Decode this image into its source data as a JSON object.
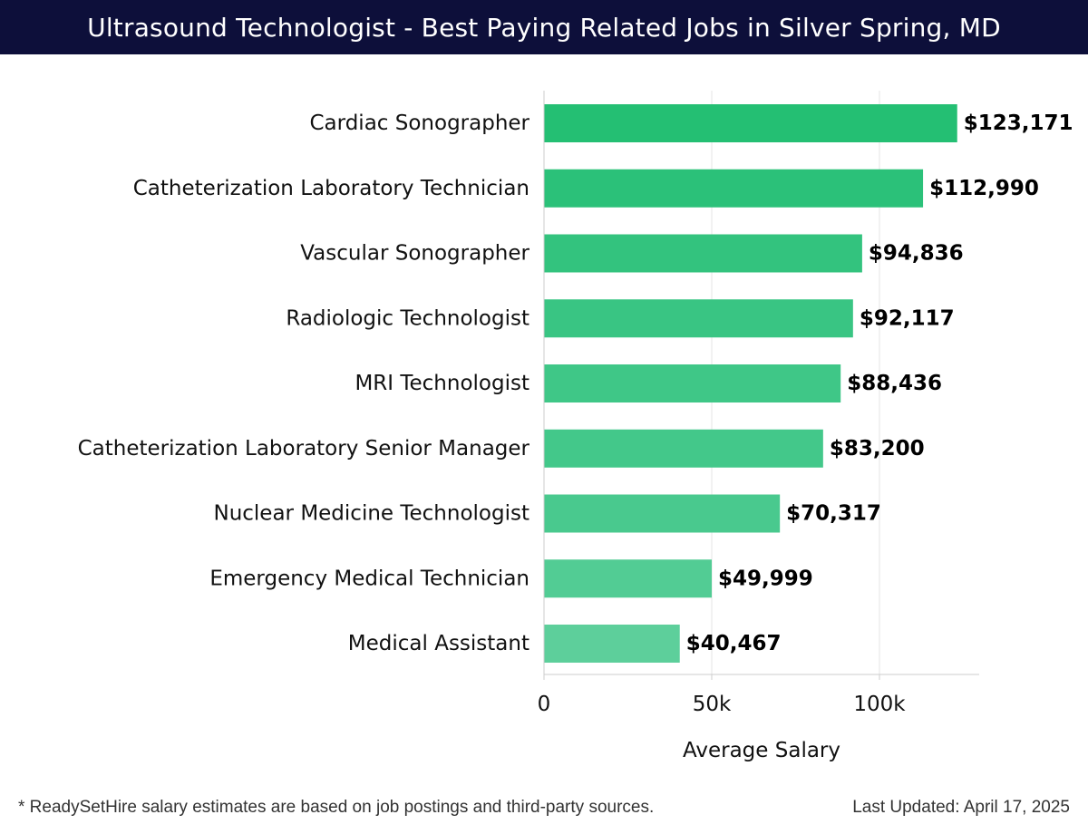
{
  "header": {
    "title": "Ultrasound Technologist - Best Paying Related Jobs in Silver Spring, MD"
  },
  "footer": {
    "note": "* ReadySetHire salary estimates are based on job postings and third-party sources.",
    "updated": "Last Updated: April 17, 2025"
  },
  "chart_data": {
    "type": "bar",
    "orientation": "horizontal",
    "title": "Ultrasound Technologist - Best Paying Related Jobs in Silver Spring, MD",
    "xlabel": "Average Salary",
    "ylabel": "",
    "xlim": [
      0,
      130000
    ],
    "xticks": [
      0,
      50000,
      100000
    ],
    "xtick_labels": [
      "0",
      "50k",
      "100k"
    ],
    "grid": "vertical",
    "categories": [
      "Cardiac Sonographer",
      "Catheterization Laboratory Technician",
      "Vascular Sonographer",
      "Radiologic Technologist",
      "MRI Technologist",
      "Catheterization Laboratory Senior Manager",
      "Nuclear Medicine Technologist",
      "Emergency Medical Technician",
      "Medical Assistant"
    ],
    "values": [
      123171,
      112990,
      94836,
      92117,
      88436,
      83200,
      70317,
      49999,
      40467
    ],
    "value_labels": [
      "$123,171",
      "$112,990",
      "$94,836",
      "$92,117",
      "$88,436",
      "$83,200",
      "$70,317",
      "$49,999",
      "$40,467"
    ],
    "bar_colors": [
      "#24bf73",
      "#2bc179",
      "#33c37e",
      "#39c583",
      "#3fc787",
      "#43c88a",
      "#49c98e",
      "#52cc94",
      "#5dcf9b"
    ],
    "grid_color": "#e6e6e6",
    "axis_color": "#cccccc"
  }
}
